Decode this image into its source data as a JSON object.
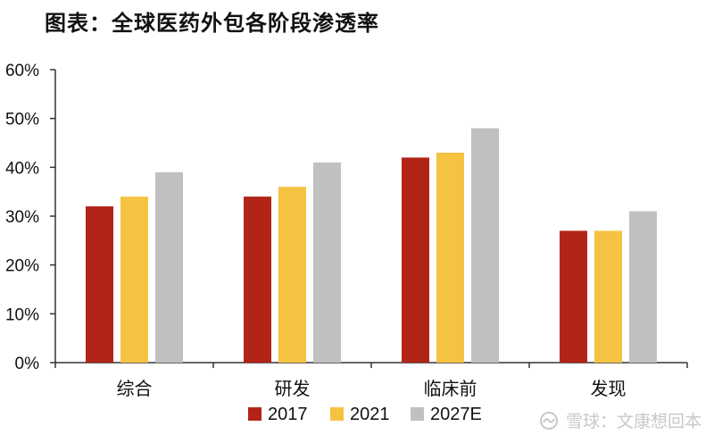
{
  "title": "图表：全球医药外包各阶段渗透率",
  "watermark": "雪球：文康想回本",
  "colors": {
    "series_2017": "#b22418",
    "series_2021": "#f5c242",
    "series_2027E": "#c0c0c0",
    "axis": "#333333"
  },
  "chart_data": {
    "type": "bar",
    "title": "图表：全球医药外包各阶段渗透率",
    "categories": [
      "综合",
      "研发",
      "临床前",
      "发现"
    ],
    "series": [
      {
        "name": "2017",
        "values": [
          32,
          34,
          42,
          27
        ]
      },
      {
        "name": "2021",
        "values": [
          34,
          36,
          43,
          27
        ]
      },
      {
        "name": "2027E",
        "values": [
          39,
          41,
          48,
          31
        ]
      }
    ],
    "unit": "%",
    "ylim": [
      0,
      60
    ],
    "yticks": [
      "0%",
      "10%",
      "20%",
      "30%",
      "40%",
      "50%",
      "60%"
    ],
    "xlabel": "",
    "ylabel": "",
    "grid": false,
    "legend_position": "bottom"
  }
}
